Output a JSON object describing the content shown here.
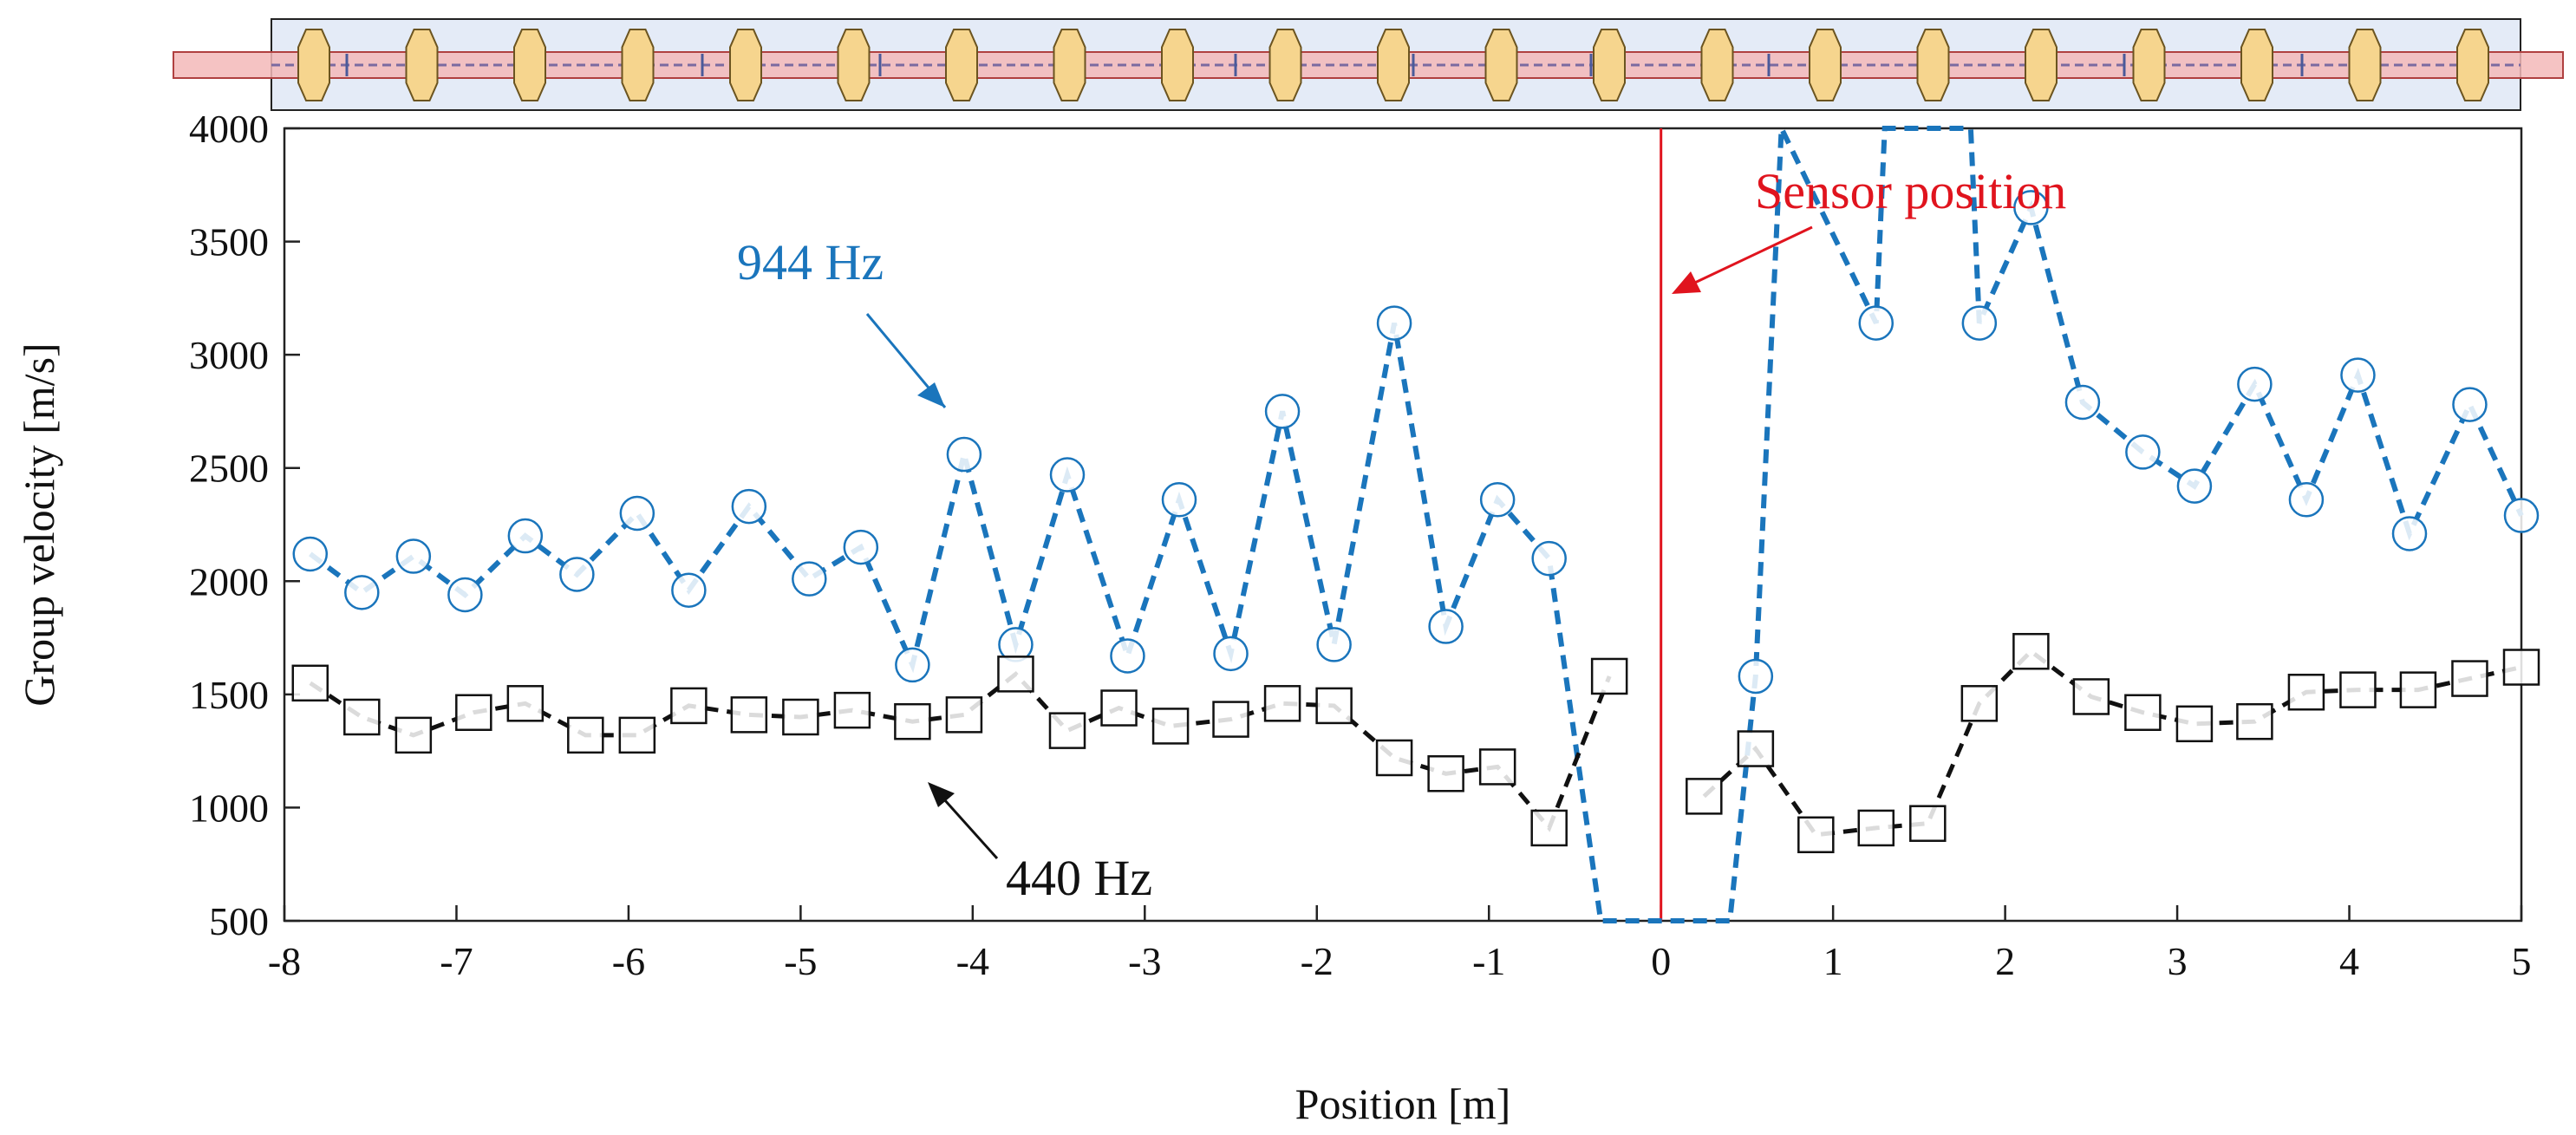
{
  "chart_data": {
    "type": "line",
    "xlabel": "Position [m]",
    "ylabel": "Group velocity [m/s]",
    "xlim": [
      -8,
      5
    ],
    "ylim": [
      500,
      4000
    ],
    "x_ticks": [
      "-8",
      "-7",
      "-6",
      "-5",
      "-4",
      "-3",
      "-2",
      "-1",
      "0",
      "1",
      "2",
      "3",
      "4",
      "5"
    ],
    "y_ticks": [
      "500",
      "1000",
      "1500",
      "2000",
      "2500",
      "3000",
      "3500",
      "4000"
    ],
    "grid": false,
    "series": [
      {
        "name": "944 Hz",
        "color": "#1a75bc",
        "marker": "circle",
        "line": "dashed",
        "points": [
          [
            -7.85,
            2120
          ],
          [
            -7.55,
            1950
          ],
          [
            -7.25,
            2110
          ],
          [
            -6.95,
            1940
          ],
          [
            -6.6,
            2200
          ],
          [
            -6.3,
            2030
          ],
          [
            -5.95,
            2300
          ],
          [
            -5.65,
            1960
          ],
          [
            -5.3,
            2330
          ],
          [
            -4.95,
            2010
          ],
          [
            -4.65,
            2150
          ],
          [
            -4.35,
            1630
          ],
          [
            -4.05,
            2560
          ],
          [
            -3.75,
            1720
          ],
          [
            -3.45,
            2470
          ],
          [
            -3.1,
            1670
          ],
          [
            -2.8,
            2360
          ],
          [
            -2.5,
            1680
          ],
          [
            -2.2,
            2750
          ],
          [
            -1.9,
            1720
          ],
          [
            -1.55,
            3140
          ],
          [
            -1.25,
            1800
          ],
          [
            -0.95,
            2360
          ],
          [
            -0.65,
            2100
          ],
          [
            -0.35,
            500
          ],
          [
            0.4,
            500
          ],
          [
            0.55,
            1580
          ],
          [
            0.7,
            4000
          ],
          [
            1.25,
            3140
          ],
          [
            1.3,
            4000
          ],
          [
            1.8,
            4000
          ],
          [
            1.85,
            3140
          ],
          [
            2.15,
            3650
          ],
          [
            2.45,
            2790
          ],
          [
            2.8,
            2570
          ],
          [
            3.1,
            2420
          ],
          [
            3.45,
            2870
          ],
          [
            3.75,
            2360
          ],
          [
            4.05,
            2910
          ],
          [
            4.35,
            2210
          ],
          [
            4.7,
            2780
          ],
          [
            5.0,
            2290
          ]
        ],
        "markers": [
          [
            -7.85,
            2120
          ],
          [
            -7.55,
            1950
          ],
          [
            -7.25,
            2110
          ],
          [
            -6.95,
            1940
          ],
          [
            -6.6,
            2200
          ],
          [
            -6.3,
            2030
          ],
          [
            -5.95,
            2300
          ],
          [
            -5.65,
            1960
          ],
          [
            -5.3,
            2330
          ],
          [
            -4.95,
            2010
          ],
          [
            -4.65,
            2150
          ],
          [
            -4.35,
            1630
          ],
          [
            -4.05,
            2560
          ],
          [
            -3.75,
            1720
          ],
          [
            -3.45,
            2470
          ],
          [
            -3.1,
            1670
          ],
          [
            -2.8,
            2360
          ],
          [
            -2.5,
            1680
          ],
          [
            -2.2,
            2750
          ],
          [
            -1.9,
            1720
          ],
          [
            -1.55,
            3140
          ],
          [
            -1.25,
            1800
          ],
          [
            -0.95,
            2360
          ],
          [
            -0.65,
            2100
          ],
          [
            0.55,
            1580
          ],
          [
            1.25,
            3140
          ],
          [
            1.85,
            3140
          ],
          [
            2.15,
            3650
          ],
          [
            2.45,
            2790
          ],
          [
            2.8,
            2570
          ],
          [
            3.1,
            2420
          ],
          [
            3.45,
            2870
          ],
          [
            3.75,
            2360
          ],
          [
            4.05,
            2910
          ],
          [
            4.35,
            2210
          ],
          [
            4.7,
            2780
          ],
          [
            5.0,
            2290
          ]
        ]
      },
      {
        "name": "440 Hz",
        "color": "#111111",
        "marker": "square",
        "line": "dashed",
        "segments": [
          [
            [
              -7.85,
              1550
            ],
            [
              -7.55,
              1400
            ],
            [
              -7.25,
              1320
            ],
            [
              -6.9,
              1420
            ],
            [
              -6.6,
              1460
            ],
            [
              -6.25,
              1320
            ],
            [
              -5.95,
              1320
            ],
            [
              -5.65,
              1450
            ],
            [
              -5.3,
              1410
            ],
            [
              -5.0,
              1400
            ],
            [
              -4.7,
              1430
            ],
            [
              -4.35,
              1380
            ],
            [
              -4.05,
              1410
            ],
            [
              -3.75,
              1590
            ],
            [
              -3.45,
              1340
            ],
            [
              -3.15,
              1440
            ],
            [
              -2.85,
              1360
            ],
            [
              -2.5,
              1390
            ],
            [
              -2.2,
              1460
            ],
            [
              -1.9,
              1450
            ],
            [
              -1.55,
              1220
            ],
            [
              -1.25,
              1150
            ],
            [
              -0.95,
              1180
            ],
            [
              -0.65,
              910
            ],
            [
              -0.3,
              1580
            ]
          ],
          [
            [
              0.25,
              1050
            ],
            [
              0.55,
              1260
            ],
            [
              0.9,
              880
            ],
            [
              1.25,
              910
            ],
            [
              1.55,
              930
            ],
            [
              1.85,
              1460
            ],
            [
              2.15,
              1690
            ],
            [
              2.5,
              1490
            ],
            [
              2.8,
              1420
            ],
            [
              3.1,
              1370
            ],
            [
              3.45,
              1380
            ],
            [
              3.75,
              1510
            ],
            [
              4.05,
              1520
            ],
            [
              4.4,
              1520
            ],
            [
              4.7,
              1570
            ],
            [
              5.0,
              1620
            ]
          ]
        ]
      }
    ],
    "annotations": [
      {
        "text": "944 Hz",
        "color": "#1a75bc",
        "target": [
          -4.05,
          2550
        ]
      },
      {
        "text": "440 Hz",
        "color": "#111111",
        "target": [
          -4.35,
          1270
        ]
      },
      {
        "text": "Sensor position",
        "color": "#e0141e",
        "target": [
          0,
          3000
        ]
      }
    ],
    "sensor_line_x": 0,
    "sensor_line_color": "#e0141e"
  }
}
